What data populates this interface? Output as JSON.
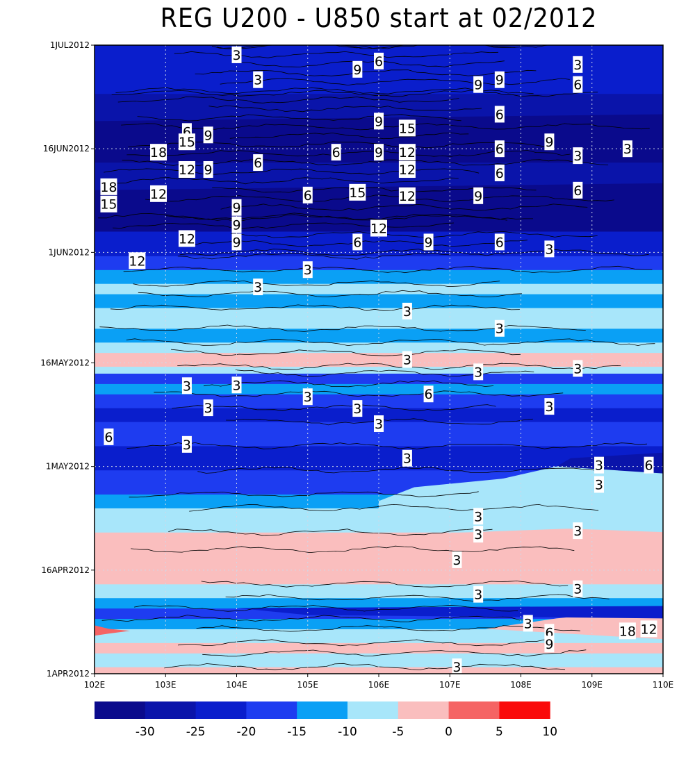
{
  "chart_data": {
    "type": "heatmap",
    "title": "REG U200 - U850 start at 02/2012",
    "xlabel": "",
    "ylabel": "",
    "xlim": [
      102,
      110
    ],
    "x_tick_labels": [
      "102E",
      "103E",
      "104E",
      "105E",
      "106E",
      "107E",
      "108E",
      "109E",
      "110E"
    ],
    "x_ticks": [
      102,
      103,
      104,
      105,
      106,
      107,
      108,
      109,
      110
    ],
    "ylim_days": [
      0,
      91
    ],
    "y_tick_labels": [
      "1APR2012",
      "16APR2012",
      "1MAY2012",
      "16MAY2012",
      "1JUN2012",
      "16JUN2012",
      "1JUL2012"
    ],
    "y_ticks_days": [
      0,
      15,
      30,
      45,
      61,
      76,
      91
    ],
    "grid": true,
    "colorbar": {
      "levels": [
        -35,
        -30,
        -25,
        -20,
        -15,
        -10,
        -5,
        0,
        5,
        10,
        15
      ],
      "tick_labels": [
        "-30",
        "-25",
        "-20",
        "-15",
        "-10",
        "-5",
        "0",
        "5",
        "10"
      ],
      "colors": [
        "#0a0a8c",
        "#0a14aa",
        "#0a1ecc",
        "#1e3cf0",
        "#0aa0f5",
        "#a8e6fa",
        "#fabebe",
        "#f56464",
        "#fa0a0a"
      ]
    },
    "bands": [
      {
        "y0": 0,
        "y1": 1,
        "color": "#fabebe"
      },
      {
        "y0": 1,
        "y1": 3,
        "color": "#a8e6fa"
      },
      {
        "y0": 3,
        "y1": 4.5,
        "color": "#fabebe"
      },
      {
        "y0": 4.5,
        "y1": 6.5,
        "color": "#a8e6fa"
      },
      {
        "y0": 6.5,
        "y1": 8,
        "color": "#0aa0f5"
      },
      {
        "y0": 8,
        "y1": 9.5,
        "color": "#1e3cf0"
      },
      {
        "y0": 9.5,
        "y1": 11,
        "color": "#0aa0f5"
      },
      {
        "y0": 11,
        "y1": 13,
        "color": "#a8e6fa"
      },
      {
        "y0": 13,
        "y1": 18,
        "color": "#fabebe"
      },
      {
        "y0": 18,
        "y1": 20.5,
        "color": "#fabebe"
      },
      {
        "y0": 20.5,
        "y1": 24,
        "color": "#a8e6fa"
      },
      {
        "y0": 24,
        "y1": 26,
        "color": "#0aa0f5"
      },
      {
        "y0": 26,
        "y1": 29.5,
        "color": "#1e3cf0"
      },
      {
        "y0": 29.5,
        "y1": 33,
        "color": "#0a1ecc"
      },
      {
        "y0": 33,
        "y1": 36.5,
        "color": "#1e3cf0"
      },
      {
        "y0": 36.5,
        "y1": 38.5,
        "color": "#0a1ecc"
      },
      {
        "y0": 38.5,
        "y1": 40.5,
        "color": "#1e3cf0"
      },
      {
        "y0": 40.5,
        "y1": 42,
        "color": "#0aa0f5"
      },
      {
        "y0": 42,
        "y1": 43.5,
        "color": "#1e3cf0"
      },
      {
        "y0": 43.5,
        "y1": 44.5,
        "color": "#a8e6fa"
      },
      {
        "y0": 44.5,
        "y1": 46.5,
        "color": "#fabebe"
      },
      {
        "y0": 46.5,
        "y1": 48,
        "color": "#a8e6fa"
      },
      {
        "y0": 48,
        "y1": 50,
        "color": "#0aa0f5"
      },
      {
        "y0": 50,
        "y1": 53,
        "color": "#a8e6fa"
      },
      {
        "y0": 53,
        "y1": 55,
        "color": "#0aa0f5"
      },
      {
        "y0": 55,
        "y1": 56.5,
        "color": "#a8e6fa"
      },
      {
        "y0": 56.5,
        "y1": 58.5,
        "color": "#0aa0f5"
      },
      {
        "y0": 58.5,
        "y1": 60.5,
        "color": "#1e3cf0"
      },
      {
        "y0": 60.5,
        "y1": 66,
        "color": "#0a1ecc"
      },
      {
        "y0": 66,
        "y1": 84,
        "color": "#0a14aa"
      },
      {
        "y0": 84,
        "y1": 91,
        "color": "#0a1ecc"
      }
    ],
    "patches": [
      {
        "points": [
          [
            102,
            5.5
          ],
          [
            102,
            7
          ],
          [
            102.2,
            6.5
          ],
          [
            102.5,
            6.2
          ],
          [
            102.2,
            5.8
          ]
        ],
        "color": "#f56464"
      },
      {
        "points": [
          [
            102,
            14
          ],
          [
            104.6,
            15.5
          ],
          [
            102,
            19
          ]
        ],
        "color": "#fabebe"
      },
      {
        "points": [
          [
            103.6,
            18.5
          ],
          [
            110,
            18
          ],
          [
            110,
            21.5
          ],
          [
            106,
            20
          ],
          [
            103.6,
            19.5
          ]
        ],
        "color": "#fabebe"
      },
      {
        "points": [
          [
            106,
            22
          ],
          [
            110,
            20.5
          ],
          [
            110,
            27.5
          ],
          [
            108,
            28.5
          ],
          [
            106.5,
            27
          ],
          [
            106,
            25
          ]
        ],
        "color": "#a8e6fa"
      },
      {
        "points": [
          [
            107,
            26.5
          ],
          [
            110,
            24.5
          ],
          [
            110,
            29.5
          ],
          [
            108.5,
            30
          ]
        ],
        "color": "#a8e6fa"
      },
      {
        "points": [
          [
            107.5,
            6.5
          ],
          [
            110,
            5
          ],
          [
            110,
            9.5
          ],
          [
            108.5,
            8
          ]
        ],
        "color": "#fabebe"
      },
      {
        "points": [
          [
            105,
            8.5
          ],
          [
            110,
            8
          ],
          [
            110,
            9.8
          ],
          [
            104,
            9.5
          ]
        ],
        "color": "#0a1ecc"
      },
      {
        "points": [
          [
            108.5,
            30
          ],
          [
            110,
            29
          ],
          [
            110,
            32
          ],
          [
            108.7,
            31.2
          ]
        ],
        "color": "#0a14aa"
      },
      {
        "points": [
          [
            102,
            64
          ],
          [
            110,
            64
          ],
          [
            110,
            71
          ],
          [
            102,
            70
          ]
        ],
        "color": "#0a0a8c"
      },
      {
        "points": [
          [
            102,
            74
          ],
          [
            110,
            74
          ],
          [
            110,
            81
          ],
          [
            102,
            80
          ]
        ],
        "color": "#0a0a8c"
      }
    ],
    "contour_labels": [
      {
        "x": 102.2,
        "y": 70.5,
        "text": "18"
      },
      {
        "x": 102.2,
        "y": 68,
        "text": "15"
      },
      {
        "x": 102.9,
        "y": 75.5,
        "text": "18"
      },
      {
        "x": 103.3,
        "y": 78.5,
        "text": "6"
      },
      {
        "x": 103.3,
        "y": 77,
        "text": "15"
      },
      {
        "x": 103.6,
        "y": 78,
        "text": "9"
      },
      {
        "x": 103.3,
        "y": 73,
        "text": "12"
      },
      {
        "x": 103.6,
        "y": 73,
        "text": "9"
      },
      {
        "x": 102.9,
        "y": 69.5,
        "text": "12"
      },
      {
        "x": 103.3,
        "y": 63,
        "text": "12"
      },
      {
        "x": 102.6,
        "y": 59.8,
        "text": "12"
      },
      {
        "x": 104,
        "y": 89.6,
        "text": "3"
      },
      {
        "x": 104.3,
        "y": 86,
        "text": "3"
      },
      {
        "x": 104.3,
        "y": 74,
        "text": "6"
      },
      {
        "x": 104,
        "y": 67.5,
        "text": "9"
      },
      {
        "x": 104,
        "y": 65,
        "text": "9"
      },
      {
        "x": 104,
        "y": 62.5,
        "text": "9"
      },
      {
        "x": 104.3,
        "y": 56,
        "text": "3"
      },
      {
        "x": 105,
        "y": 69.3,
        "text": "6"
      },
      {
        "x": 105,
        "y": 58.5,
        "text": "3"
      },
      {
        "x": 105.4,
        "y": 75.5,
        "text": "6"
      },
      {
        "x": 105.7,
        "y": 69.7,
        "text": "15"
      },
      {
        "x": 105.7,
        "y": 87.5,
        "text": "9"
      },
      {
        "x": 106,
        "y": 88.7,
        "text": "6"
      },
      {
        "x": 106,
        "y": 80,
        "text": "9"
      },
      {
        "x": 106,
        "y": 75.5,
        "text": "9"
      },
      {
        "x": 106,
        "y": 64.5,
        "text": "12"
      },
      {
        "x": 105.7,
        "y": 62.5,
        "text": "6"
      },
      {
        "x": 106.4,
        "y": 79,
        "text": "15"
      },
      {
        "x": 106.4,
        "y": 75.5,
        "text": "12"
      },
      {
        "x": 106.4,
        "y": 73,
        "text": "12"
      },
      {
        "x": 106.4,
        "y": 69.2,
        "text": "12"
      },
      {
        "x": 106.7,
        "y": 62.5,
        "text": "9"
      },
      {
        "x": 107.4,
        "y": 85.3,
        "text": "9"
      },
      {
        "x": 107.4,
        "y": 69.2,
        "text": "9"
      },
      {
        "x": 107.7,
        "y": 86,
        "text": "9"
      },
      {
        "x": 107.7,
        "y": 81,
        "text": "6"
      },
      {
        "x": 107.7,
        "y": 76,
        "text": "6"
      },
      {
        "x": 107.7,
        "y": 72.5,
        "text": "6"
      },
      {
        "x": 107.7,
        "y": 62.5,
        "text": "6"
      },
      {
        "x": 108.4,
        "y": 77,
        "text": "9"
      },
      {
        "x": 108.4,
        "y": 61.5,
        "text": "3"
      },
      {
        "x": 108.8,
        "y": 88.2,
        "text": "3"
      },
      {
        "x": 108.8,
        "y": 85.3,
        "text": "6"
      },
      {
        "x": 108.8,
        "y": 75,
        "text": "3"
      },
      {
        "x": 108.8,
        "y": 70,
        "text": "6"
      },
      {
        "x": 109.5,
        "y": 76,
        "text": "3"
      },
      {
        "x": 106.4,
        "y": 52.5,
        "text": "3"
      },
      {
        "x": 107.7,
        "y": 50,
        "text": "3"
      },
      {
        "x": 106.4,
        "y": 45.5,
        "text": "3"
      },
      {
        "x": 107.4,
        "y": 43.7,
        "text": "3"
      },
      {
        "x": 108.8,
        "y": 44.2,
        "text": "3"
      },
      {
        "x": 103.3,
        "y": 41.7,
        "text": "3"
      },
      {
        "x": 104,
        "y": 41.8,
        "text": "3"
      },
      {
        "x": 103.6,
        "y": 38.5,
        "text": "3"
      },
      {
        "x": 105,
        "y": 40.1,
        "text": "3"
      },
      {
        "x": 105.7,
        "y": 38.4,
        "text": "3"
      },
      {
        "x": 106.7,
        "y": 40.5,
        "text": "6"
      },
      {
        "x": 106,
        "y": 36.2,
        "text": "3"
      },
      {
        "x": 108.4,
        "y": 38.7,
        "text": "3"
      },
      {
        "x": 102.2,
        "y": 34.3,
        "text": "6"
      },
      {
        "x": 103.3,
        "y": 33.2,
        "text": "3"
      },
      {
        "x": 106.4,
        "y": 31.2,
        "text": "3"
      },
      {
        "x": 109.1,
        "y": 30.2,
        "text": "3"
      },
      {
        "x": 109.8,
        "y": 30.2,
        "text": "6"
      },
      {
        "x": 109.1,
        "y": 27.4,
        "text": "3"
      },
      {
        "x": 107.4,
        "y": 22.8,
        "text": "3"
      },
      {
        "x": 107.4,
        "y": 20.2,
        "text": "3"
      },
      {
        "x": 108.8,
        "y": 20.7,
        "text": "3"
      },
      {
        "x": 107.1,
        "y": 16.5,
        "text": "3"
      },
      {
        "x": 107.4,
        "y": 11.5,
        "text": "3"
      },
      {
        "x": 108.8,
        "y": 12.3,
        "text": "3"
      },
      {
        "x": 108.1,
        "y": 7.3,
        "text": "3"
      },
      {
        "x": 108.4,
        "y": 6,
        "text": "6"
      },
      {
        "x": 108.4,
        "y": 4.3,
        "text": "9"
      },
      {
        "x": 109.5,
        "y": 6.2,
        "text": "18"
      },
      {
        "x": 109.8,
        "y": 6.5,
        "text": "12"
      },
      {
        "x": 107.1,
        "y": 1,
        "text": "3"
      }
    ]
  }
}
